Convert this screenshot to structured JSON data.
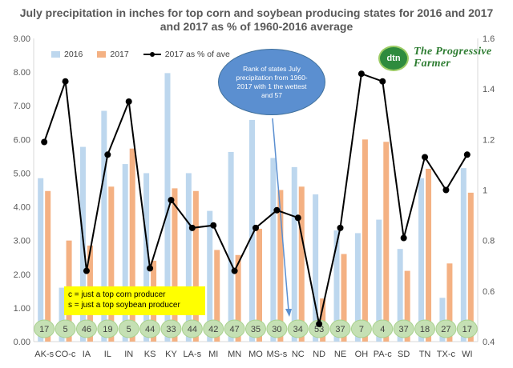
{
  "title": "July precipitation in inches for top corn and soybean producing states for 2016 and 2017 and 2017 as % of 1960-2016 average",
  "legend": {
    "series_2016": "2016",
    "series_2017": "2017",
    "series_pct": "2017 as % of ave"
  },
  "colors": {
    "bar_2016": "#bdd7ee",
    "bar_2017": "#f4b183",
    "line_pct": "#000000",
    "rank_circle": "#c5e0b4",
    "bubble": "#5b8fd0",
    "note_bg": "#ffff00"
  },
  "annotation": {
    "bubble_text": "Rank of states July precipitation from 1960-2017 with 1 the wettest and 57",
    "note_line1": "c = just a top corn producer",
    "note_line2": "s = just a top soybean producer"
  },
  "logo": {
    "badge": "dtn",
    "brand": "The Progressive Farmer",
    "icon": "dtn-progressive-farmer-logo"
  },
  "chart_data": {
    "type": "bar",
    "categories": [
      "AK-s",
      "CO-c",
      "IA",
      "IL",
      "IN",
      "KS",
      "KY",
      "LA-s",
      "MI",
      "MN",
      "MO",
      "MS-s",
      "NC",
      "ND",
      "NE",
      "OH",
      "PA-c",
      "SD",
      "TN",
      "TX-c",
      "WI"
    ],
    "series": [
      {
        "name": "2016",
        "axis": "left",
        "values": [
          4.85,
          1.6,
          5.78,
          6.85,
          5.27,
          5.0,
          7.97,
          5.0,
          3.88,
          5.63,
          6.58,
          5.45,
          5.18,
          4.37,
          3.3,
          3.22,
          3.62,
          2.75,
          4.85,
          1.3,
          5.15
        ]
      },
      {
        "name": "2017",
        "axis": "left",
        "values": [
          4.47,
          3.0,
          2.85,
          4.6,
          5.73,
          2.4,
          4.55,
          4.47,
          2.72,
          2.57,
          3.35,
          4.5,
          4.6,
          1.28,
          2.6,
          6.0,
          5.93,
          2.1,
          5.13,
          2.32,
          4.42
        ]
      },
      {
        "name": "2017 as % of ave",
        "axis": "right",
        "type": "line",
        "values": [
          1.19,
          1.43,
          0.68,
          1.14,
          1.35,
          0.69,
          0.96,
          0.85,
          0.86,
          0.68,
          0.85,
          0.92,
          0.89,
          0.47,
          0.85,
          1.46,
          1.43,
          0.81,
          1.13,
          1.0,
          1.14
        ]
      }
    ],
    "ranks": [
      17,
      5,
      46,
      19,
      5,
      44,
      33,
      44,
      42,
      47,
      35,
      30,
      34,
      53,
      37,
      7,
      4,
      37,
      18,
      27,
      17
    ],
    "ylim": [
      0,
      9
    ],
    "yticks": [
      "0.00",
      "1.00",
      "2.00",
      "3.00",
      "4.00",
      "5.00",
      "6.00",
      "7.00",
      "8.00",
      "9.00"
    ],
    "y2lim": [
      0.4,
      1.6
    ],
    "y2ticks": [
      "0.4",
      "0.6",
      "0.8",
      "1",
      "1.2",
      "1.4",
      "1.6"
    ],
    "xlabel": "",
    "ylabel": "",
    "grid": false,
    "legend_position": "top-left"
  }
}
